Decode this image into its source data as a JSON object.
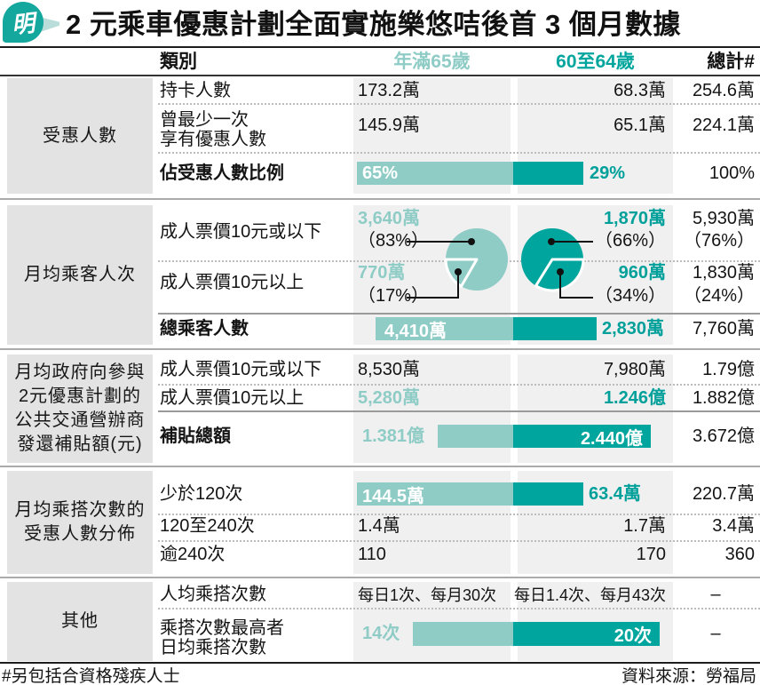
{
  "page": {
    "logo_char": "明",
    "title": "2 元乘車優惠計劃全面實施樂悠咭後首 3 個月數據",
    "footnote": "#另包括合資格殘疾人士",
    "source": "資料來源：勞福局"
  },
  "colors": {
    "teal_dark": "#00a69e",
    "teal_light": "#8fccc6",
    "column_bg": "#f0f0f1",
    "section_bg": "#e3e3e4"
  },
  "header": {
    "category": "類別",
    "col1": "年滿65歲",
    "col2": "60至64歲",
    "col3": "總計#"
  },
  "sections": [
    {
      "label_lines": [
        "受惠人數"
      ],
      "rows": [
        {
          "label": "持卡人數",
          "v1": "173.2萬",
          "v2": "68.3萬",
          "v3": "254.6萬"
        },
        {
          "label_lines": [
            "曾最少一次",
            "享有優惠人數"
          ],
          "v1": "145.9萬",
          "v2": "65.1萬",
          "v3": "224.1萬"
        },
        {
          "label": "佔受惠人數比例",
          "bar": {
            "light": "65%",
            "dark": "",
            "dark_outside": "29%",
            "light_w": 176,
            "dark_w": 79
          },
          "v3": "100%"
        }
      ]
    },
    {
      "label_lines": [
        "月均乘客人次"
      ],
      "rows": [
        {
          "label": "成人票價10元或以下",
          "v1": "3,640萬",
          "v1b": "（83%）",
          "v2": "1,870萬",
          "v2b": "（66%）",
          "v3": "5,930萬",
          "v3b": "（76%）"
        },
        {
          "label": "成人票價10元以上",
          "v1": "770萬",
          "v1b": "（17%）",
          "v2": "960萬",
          "v2b": "（34%）",
          "v3": "1,830萬",
          "v3b": "（24%）"
        },
        {
          "label": "總乘客人數",
          "bar": {
            "light": "4,410萬",
            "dark": "",
            "dark_outside": "2,830萬",
            "light_w": 155,
            "dark_w": 94
          },
          "v3": "7,760萬"
        }
      ]
    },
    {
      "label_lines": [
        "月均政府向參與",
        "2元優惠計劃的",
        "公共交通營辦商",
        "發還補貼額(元)"
      ],
      "rows": [
        {
          "label": "成人票價10元或以下",
          "v1": "8,530萬",
          "v2": "7,980萬",
          "v3": "1.79億"
        },
        {
          "label": "成人票價10元以上",
          "v1": "5,280萬",
          "v2": "1.246億",
          "v3": "1.882億"
        },
        {
          "label": "補貼總額",
          "bar": {
            "before": "1.381億",
            "light": "",
            "dark": "2.440億",
            "light_w": 85,
            "dark_w": 155
          },
          "v3": "3.672億"
        }
      ]
    },
    {
      "label_lines": [
        "月均乘搭次數的",
        "受惠人數分佈"
      ],
      "rows": [
        {
          "label": "少於120次",
          "bar": {
            "light": "144.5萬",
            "dark": "",
            "dark_outside": "63.4萬",
            "light_w": 176,
            "dark_w": 79
          },
          "v3": "220.7萬"
        },
        {
          "label": "120至240次",
          "v1": "1.4萬",
          "v2": "1.7萬",
          "v3": "3.4萬"
        },
        {
          "label": "逾240次",
          "v1": "110",
          "v2": "170",
          "v3": "360"
        }
      ]
    },
    {
      "label_lines": [
        "其他"
      ],
      "rows": [
        {
          "label": "人均乘搭次數",
          "v1": "每日1次、每月30次",
          "v2": "每日1.4次、每月43次",
          "v3": "–"
        },
        {
          "label_lines": [
            "乘搭次數最高者",
            "日均乘搭次數"
          ],
          "bar": {
            "before": "14次",
            "light": "",
            "dark": "20次",
            "light_w": 113,
            "dark_w": 165
          },
          "v3": "–"
        }
      ]
    }
  ],
  "chart_data": [
    {
      "type": "table",
      "title": "2元乘車優惠計劃全面實施樂悠咭後首3個月數據",
      "columns": [
        "類別",
        "年滿65歲",
        "60至64歲",
        "總計#"
      ],
      "rows": [
        [
          "受惠人數｜持卡人數",
          "173.2萬",
          "68.3萬",
          "254.6萬"
        ],
        [
          "受惠人數｜曾最少一次享有優惠人數",
          "145.9萬",
          "65.1萬",
          "224.1萬"
        ],
        [
          "受惠人數｜佔受惠人數比例",
          "65%",
          "29%",
          "100%"
        ],
        [
          "月均乘客人次｜成人票價10元或以下",
          "3,640萬（83%）",
          "1,870萬（66%）",
          "5,930萬（76%）"
        ],
        [
          "月均乘客人次｜成人票價10元以上",
          "770萬（17%）",
          "960萬（34%）",
          "1,830萬（24%）"
        ],
        [
          "月均乘客人次｜總乘客人數",
          "4,410萬",
          "2,830萬",
          "7,760萬"
        ],
        [
          "月均政府發還補貼額｜成人票價10元或以下",
          "8,530萬",
          "7,980萬",
          "1.79億"
        ],
        [
          "月均政府發還補貼額｜成人票價10元以上",
          "5,280萬",
          "1.246億",
          "1.882億"
        ],
        [
          "月均政府發還補貼額｜補貼總額",
          "1.381億",
          "2.440億",
          "3.672億"
        ],
        [
          "月均乘搭次數的受惠人數分佈｜少於120次",
          "144.5萬",
          "63.4萬",
          "220.7萬"
        ],
        [
          "月均乘搭次數的受惠人數分佈｜120至240次",
          "1.4萬",
          "1.7萬",
          "3.4萬"
        ],
        [
          "月均乘搭次數的受惠人數分佈｜逾240次",
          "110",
          "170",
          "360"
        ],
        [
          "其他｜人均乘搭次數",
          "每日1次、每月30次",
          "每日1.4次、每月43次",
          "–"
        ],
        [
          "其他｜乘搭次數最高者日均乘搭次數",
          "14次",
          "20次",
          "–"
        ]
      ]
    },
    {
      "type": "pie",
      "title": "年滿65歲月均乘客人次",
      "labels": [
        "成人票價10元或以下",
        "成人票價10元以上"
      ],
      "values": [
        83,
        17
      ]
    },
    {
      "type": "pie",
      "title": "60至64歲月均乘客人次",
      "labels": [
        "成人票價10元或以下",
        "成人票價10元以上"
      ],
      "values": [
        66,
        34
      ]
    },
    {
      "type": "bar",
      "title": "佔受惠人數比例(%)",
      "categories": [
        "年滿65歲",
        "60至64歲"
      ],
      "values": [
        65,
        29
      ]
    },
    {
      "type": "bar",
      "title": "總乘客人數(萬)",
      "categories": [
        "年滿65歲",
        "60至64歲"
      ],
      "values": [
        4410,
        2830
      ]
    },
    {
      "type": "bar",
      "title": "補貼總額(億元)",
      "categories": [
        "年滿65歲",
        "60至64歲"
      ],
      "values": [
        1.381,
        2.44
      ]
    },
    {
      "type": "bar",
      "title": "月均乘搭少於120次受惠人數(萬)",
      "categories": [
        "年滿65歲",
        "60至64歲"
      ],
      "values": [
        144.5,
        63.4
      ]
    },
    {
      "type": "bar",
      "title": "乘搭次數最高者日均乘搭次數(次)",
      "categories": [
        "年滿65歲",
        "60至64歲"
      ],
      "values": [
        14,
        20
      ]
    }
  ]
}
